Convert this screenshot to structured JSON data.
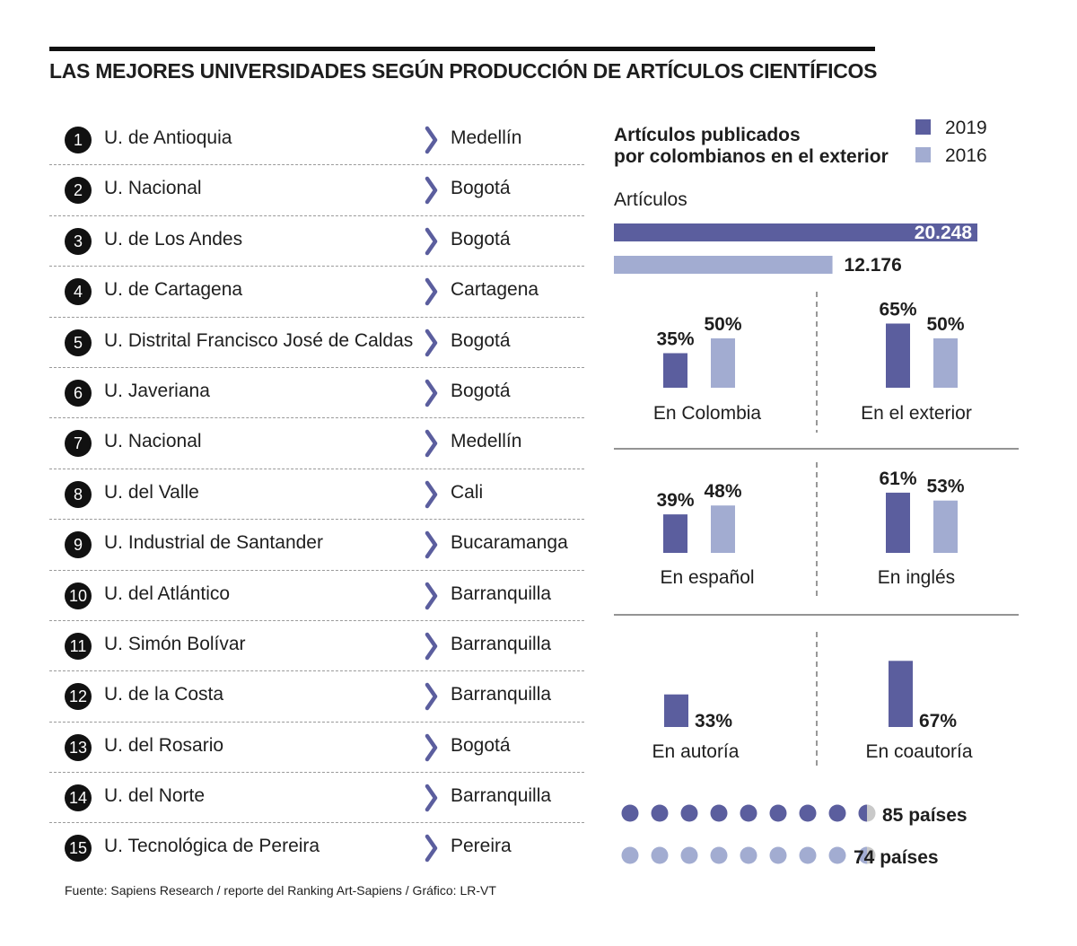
{
  "title": "LAS MEJORES UNIVERSIDADES SEGÚN PRODUCCIÓN DE ARTÍCULOS CIENTÍFICOS",
  "ranking": [
    {
      "rank": "1",
      "name": "U. de Antioquia",
      "city": "Medellín"
    },
    {
      "rank": "2",
      "name": "U. Nacional",
      "city": "Bogotá"
    },
    {
      "rank": "3",
      "name": "U. de Los Andes",
      "city": "Bogotá"
    },
    {
      "rank": "4",
      "name": "U. de Cartagena",
      "city": "Cartagena"
    },
    {
      "rank": "5",
      "name": "U. Distrital Francisco José de Caldas",
      "city": "Bogotá"
    },
    {
      "rank": "6",
      "name": "U. Javeriana",
      "city": "Bogotá"
    },
    {
      "rank": "7",
      "name": "U. Nacional",
      "city": "Medellín"
    },
    {
      "rank": "8",
      "name": "U. del Valle",
      "city": "Cali"
    },
    {
      "rank": "9",
      "name": "U. Industrial de Santander",
      "city": "Bucaramanga"
    },
    {
      "rank": "10",
      "name": "U. del Atlántico",
      "city": "Barranquilla"
    },
    {
      "rank": "11",
      "name": "U. Simón Bolívar",
      "city": "Barranquilla"
    },
    {
      "rank": "12",
      "name": "U. de la Costa",
      "city": "Barranquilla"
    },
    {
      "rank": "13",
      "name": "U. del Rosario",
      "city": "Bogotá"
    },
    {
      "rank": "14",
      "name": "U. del Norte",
      "city": "Barranquilla"
    },
    {
      "rank": "15",
      "name": "U. Tecnológica de Pereira",
      "city": "Pereira"
    }
  ],
  "source": "Fuente: Sapiens Research / reporte del Ranking Art-Sapiens / Gráfico: LR-VT",
  "colors": {
    "c2019": "#5b5e9e",
    "c2016": "#a2acd1",
    "grey": "#c9c9c9",
    "text": "#1e1e1e"
  },
  "chart_data": {
    "type": "bar",
    "title": "Artículos publicados por colombianos en el exterior",
    "title_lines": [
      "Artículos publicados",
      "por colombianos en el exterior"
    ],
    "legend": [
      "2019",
      "2016"
    ],
    "legend_placement": "top-right",
    "articles": {
      "label": "Artículos",
      "values": [
        20248,
        12176
      ],
      "labels": [
        "20.248",
        "12.176"
      ]
    },
    "groups": [
      {
        "category": "En Colombia",
        "values": [
          35,
          50
        ],
        "labels": [
          "35%",
          "50%"
        ]
      },
      {
        "category": "En el exterior",
        "values": [
          65,
          50
        ],
        "labels": [
          "65%",
          "50%"
        ]
      },
      {
        "category": "En español",
        "values": [
          39,
          48
        ],
        "labels": [
          "39%",
          "48%"
        ]
      },
      {
        "category": "En inglés",
        "values": [
          61,
          53
        ],
        "labels": [
          "61%",
          "53%"
        ]
      },
      {
        "category": "En autoría",
        "values": [
          33
        ],
        "labels": [
          "33%"
        ]
      },
      {
        "category": "En coautoría",
        "values": [
          67
        ],
        "labels": [
          "67%"
        ]
      }
    ],
    "countries": [
      {
        "year": "2019",
        "value": 85,
        "label": "85 países"
      },
      {
        "year": "2016",
        "value": 74,
        "label": "74 países"
      }
    ]
  }
}
